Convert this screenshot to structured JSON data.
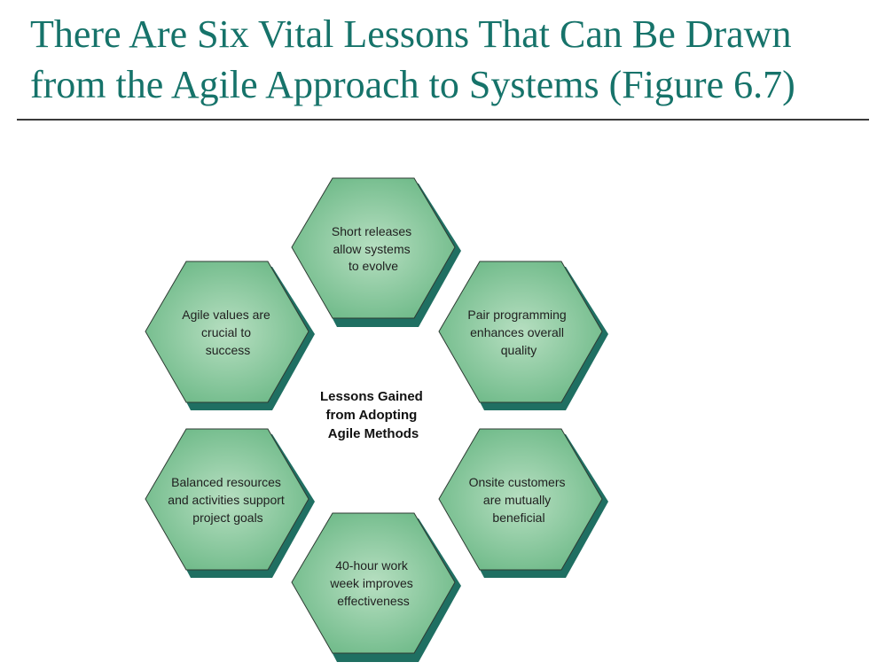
{
  "slide": {
    "title_line1": "There Are Six Vital Lessons That Can Be Drawn",
    "title_line2": "from the Agile Approach to Systems (Figure 6.7)"
  },
  "diagram": {
    "center": {
      "line1": "Lessons Gained",
      "line2": "from Adopting",
      "line3": "Agile Methods"
    },
    "lessons": [
      {
        "line1": "Short releases",
        "line2": "allow systems",
        "line3": "to evolve"
      },
      {
        "line1": "Pair programming",
        "line2": "enhances overall",
        "line3": "quality"
      },
      {
        "line1": "Onsite customers",
        "line2": "are mutually",
        "line3": "beneficial"
      },
      {
        "line1": "40-hour work",
        "line2": "week improves",
        "line3": "effectiveness"
      },
      {
        "line1": "Balanced resources",
        "line2": "and activities support",
        "line3": "project goals"
      },
      {
        "line1": "Agile values are",
        "line2": "crucial to",
        "line3": "success"
      }
    ],
    "colors": {
      "hex_fill_center": "#b7dfc1",
      "hex_fill_edge": "#6bb886",
      "hex_shadow": "#1f6f62",
      "hex_outline": "#2e3b33"
    }
  }
}
